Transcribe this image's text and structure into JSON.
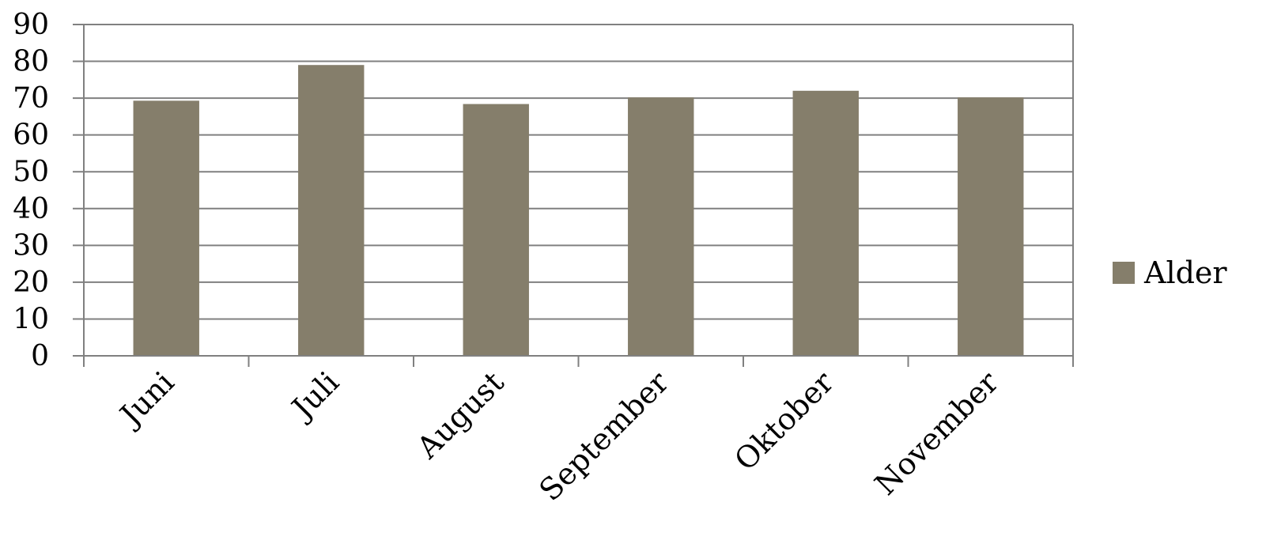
{
  "chart_data": {
    "type": "bar",
    "categories": [
      "Juni",
      "Juli",
      "August",
      "September",
      "Oktober",
      "November"
    ],
    "series": [
      {
        "name": "Alder",
        "values": [
          69.3,
          79.0,
          68.4,
          70.2,
          72.0,
          70.2
        ]
      }
    ],
    "title": "",
    "xlabel": "",
    "ylabel": "",
    "ylim": [
      0,
      90
    ],
    "yticks": [
      "0",
      "10",
      "20",
      "30",
      "40",
      "50",
      "60",
      "70",
      "80",
      "90"
    ],
    "grid": true,
    "legend_position": "right",
    "colors": {
      "bar": "#857e6b",
      "grid": "#808080",
      "axis": "#808080"
    }
  }
}
